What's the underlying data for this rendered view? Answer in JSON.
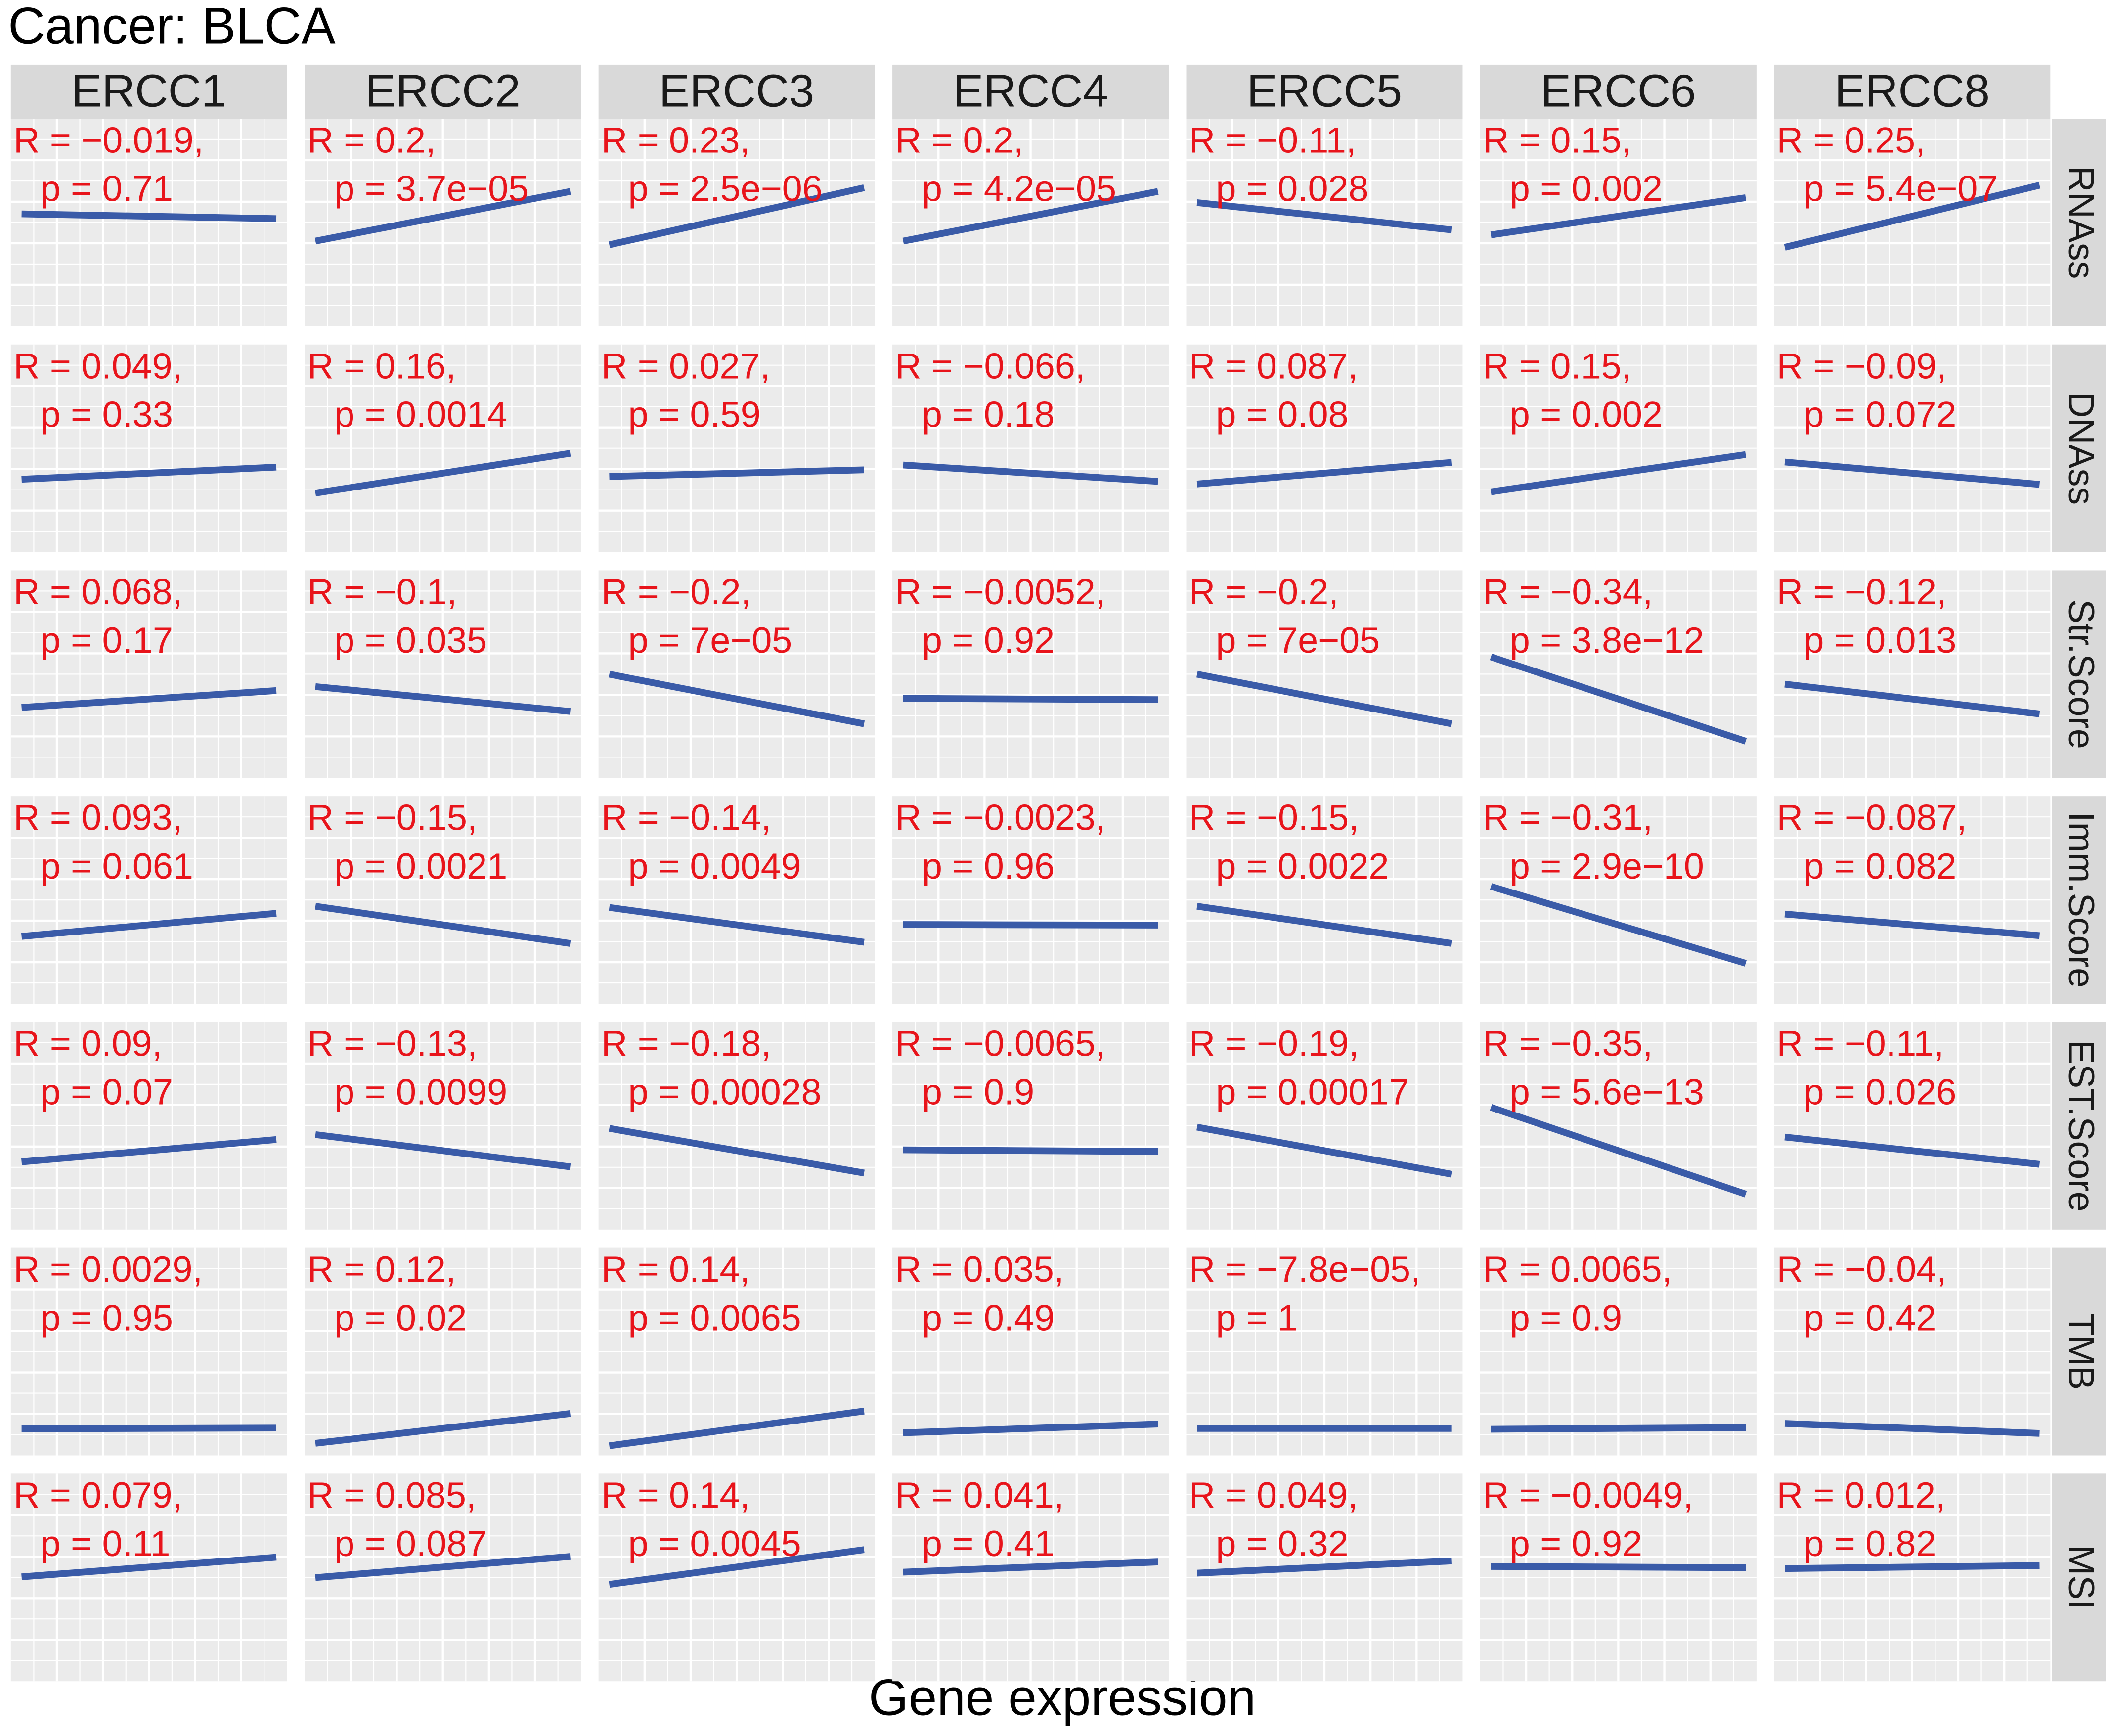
{
  "chart_data": {
    "type": "facet-correlation",
    "title": "Cancer: BLCA",
    "x_label": "Gene expression",
    "columns": [
      "ERCC1",
      "ERCC2",
      "ERCC3",
      "ERCC4",
      "ERCC5",
      "ERCC6",
      "ERCC8"
    ],
    "rows": [
      "RNAss",
      "DNAss",
      "Str.Score",
      "Imm.Score",
      "EST.Score",
      "TMB",
      "MSI"
    ],
    "line_color": "#3a5ba8",
    "label_color": "#e8141b",
    "r": [
      [
        -0.019,
        0.2,
        0.23,
        0.2,
        -0.11,
        0.15,
        0.25
      ],
      [
        0.049,
        0.16,
        0.027,
        -0.066,
        0.087,
        0.15,
        -0.09
      ],
      [
        0.068,
        -0.1,
        -0.2,
        -0.0052,
        -0.2,
        -0.34,
        -0.12
      ],
      [
        0.093,
        -0.15,
        -0.14,
        -0.0023,
        -0.15,
        -0.31,
        -0.087
      ],
      [
        0.09,
        -0.13,
        -0.18,
        -0.0065,
        -0.19,
        -0.35,
        -0.11
      ],
      [
        0.0029,
        0.12,
        0.14,
        0.035,
        -7.8e-05,
        0.0065,
        -0.04
      ],
      [
        0.079,
        0.085,
        0.14,
        0.041,
        0.049,
        -0.0049,
        0.012
      ]
    ],
    "r_labels": [
      [
        "R = −0.019,",
        "R = 0.2,",
        "R = 0.23,",
        "R = 0.2,",
        "R = −0.11,",
        "R = 0.15,",
        "R = 0.25,"
      ],
      [
        "R = 0.049,",
        "R = 0.16,",
        "R = 0.027,",
        "R = −0.066,",
        "R = 0.087,",
        "R = 0.15,",
        "R = −0.09,"
      ],
      [
        "R = 0.068,",
        "R = −0.1,",
        "R = −0.2,",
        "R = −0.0052,",
        "R = −0.2,",
        "R = −0.34,",
        "R = −0.12,"
      ],
      [
        "R = 0.093,",
        "R = −0.15,",
        "R = −0.14,",
        "R = −0.0023,",
        "R = −0.15,",
        "R = −0.31,",
        "R = −0.087,"
      ],
      [
        "R = 0.09,",
        "R = −0.13,",
        "R = −0.18,",
        "R = −0.0065,",
        "R = −0.19,",
        "R = −0.35,",
        "R = −0.11,"
      ],
      [
        "R = 0.0029,",
        "R = 0.12,",
        "R = 0.14,",
        "R = 0.035,",
        "R = −7.8e−05,",
        "R = 0.0065,",
        "R = −0.04,"
      ],
      [
        "R = 0.079,",
        "R = 0.085,",
        "R = 0.14,",
        "R = 0.041,",
        "R = 0.049,",
        "R = −0.0049,",
        "R = 0.012,"
      ]
    ],
    "p": [
      [
        0.71,
        3.7e-05,
        2.5e-06,
        4.2e-05,
        0.028,
        0.002,
        5.4e-07
      ],
      [
        0.33,
        0.0014,
        0.59,
        0.18,
        0.08,
        0.002,
        0.072
      ],
      [
        0.17,
        0.035,
        7e-05,
        0.92,
        7e-05,
        3.8e-12,
        0.013
      ],
      [
        0.061,
        0.0021,
        0.0049,
        0.96,
        0.0022,
        2.9e-10,
        0.082
      ],
      [
        0.07,
        0.0099,
        0.00028,
        0.9,
        0.00017,
        5.6e-13,
        0.026
      ],
      [
        0.95,
        0.02,
        0.0065,
        0.49,
        1,
        0.9,
        0.42
      ],
      [
        0.11,
        0.087,
        0.0045,
        0.41,
        0.32,
        0.92,
        0.82
      ]
    ],
    "p_labels": [
      [
        "p = 0.71",
        "p = 3.7e−05",
        "p = 2.5e−06",
        "p = 4.2e−05",
        "p = 0.028",
        "p = 0.002",
        "p = 5.4e−07"
      ],
      [
        "p = 0.33",
        "p = 0.0014",
        "p = 0.59",
        "p = 0.18",
        "p = 0.08",
        "p = 0.002",
        "p = 0.072"
      ],
      [
        "p = 0.17",
        "p = 0.035",
        "p = 7e−05",
        "p = 0.92",
        "p = 7e−05",
        "p = 3.8e−12",
        "p = 0.013"
      ],
      [
        "p = 0.061",
        "p = 0.0021",
        "p = 0.0049",
        "p = 0.96",
        "p = 0.0022",
        "p = 2.9e−10",
        "p = 0.082"
      ],
      [
        "p = 0.07",
        "p = 0.0099",
        "p = 0.00028",
        "p = 0.9",
        "p = 0.00017",
        "p = 5.6e−13",
        "p = 0.026"
      ],
      [
        "p = 0.95",
        "p = 0.02",
        "p = 0.0065",
        "p = 0.49",
        "p = 1",
        "p = 0.9",
        "p = 0.42"
      ],
      [
        "p = 0.11",
        "p = 0.087",
        "p = 0.0045",
        "p = 0.41",
        "p = 0.32",
        "p = 0.92",
        "p = 0.82"
      ]
    ]
  }
}
